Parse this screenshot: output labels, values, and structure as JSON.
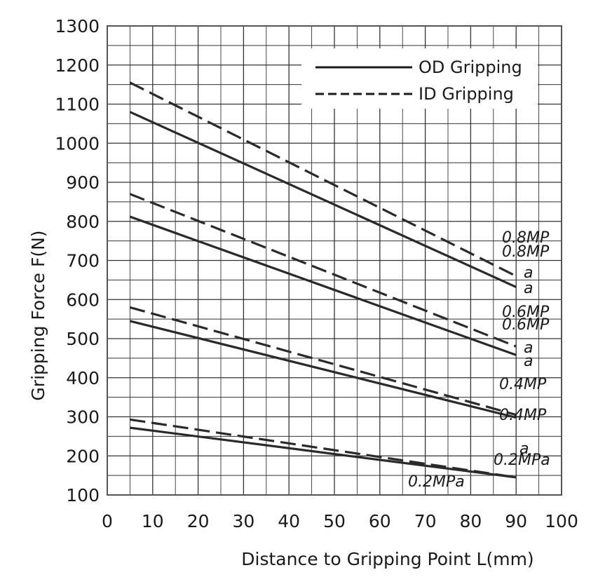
{
  "chart_data": {
    "type": "line",
    "xlabel": "Distance to Gripping Point L(mm)",
    "ylabel": "Gripping Force F(N)",
    "xlim": [
      0,
      100
    ],
    "ylim": [
      100,
      1300
    ],
    "x_ticks": [
      "0",
      "10",
      "20",
      "30",
      "40",
      "50",
      "60",
      "70",
      "80",
      "90",
      "100"
    ],
    "y_ticks": [
      "100",
      "200",
      "300",
      "400",
      "500",
      "600",
      "700",
      "800",
      "900",
      "1000",
      "1100",
      "1200",
      "1300"
    ],
    "grid": true,
    "legend": {
      "position": "top-right",
      "entries": [
        {
          "label": "OD Gripping",
          "style": "solid"
        },
        {
          "label": "ID Gripping",
          "style": "dashed"
        }
      ]
    },
    "series": [
      {
        "label_line1": "0.8MP",
        "label_line2": "a",
        "group": "OD Gripping",
        "style": "solid",
        "x": [
          5,
          90
        ],
        "y": [
          1080,
          632
        ]
      },
      {
        "label_line1": "0.8MP",
        "label_line2": "a",
        "group": "ID Gripping",
        "style": "dashed",
        "x": [
          5,
          90
        ],
        "y": [
          1155,
          660
        ]
      },
      {
        "label_line1": "0.6MP",
        "label_line2": "a",
        "group": "OD Gripping",
        "style": "solid",
        "x": [
          5,
          90
        ],
        "y": [
          812,
          458
        ]
      },
      {
        "label_line1": "0.6MP",
        "label_line2": "a",
        "group": "ID Gripping",
        "style": "dashed",
        "x": [
          5,
          90
        ],
        "y": [
          870,
          480
        ]
      },
      {
        "label_line1": "0.4MP",
        "label_line2": "a",
        "group": "OD Gripping",
        "style": "solid",
        "x": [
          5,
          90
        ],
        "y": [
          545,
          298
        ]
      },
      {
        "label_line1": "0.4MP",
        "label_line2": "",
        "group": "ID Gripping",
        "style": "dashed",
        "x": [
          5,
          90
        ],
        "y": [
          580,
          305
        ]
      },
      {
        "label_line1": "0.2MPa",
        "label_line2": "",
        "group": "OD Gripping",
        "style": "solid",
        "x": [
          5,
          90
        ],
        "y": [
          272,
          145
        ]
      },
      {
        "label_line1": "0.2MPa",
        "label_line2": "",
        "group": "ID Gripping",
        "style": "dashed",
        "x": [
          5,
          90
        ],
        "y": [
          293,
          145
        ]
      }
    ]
  }
}
